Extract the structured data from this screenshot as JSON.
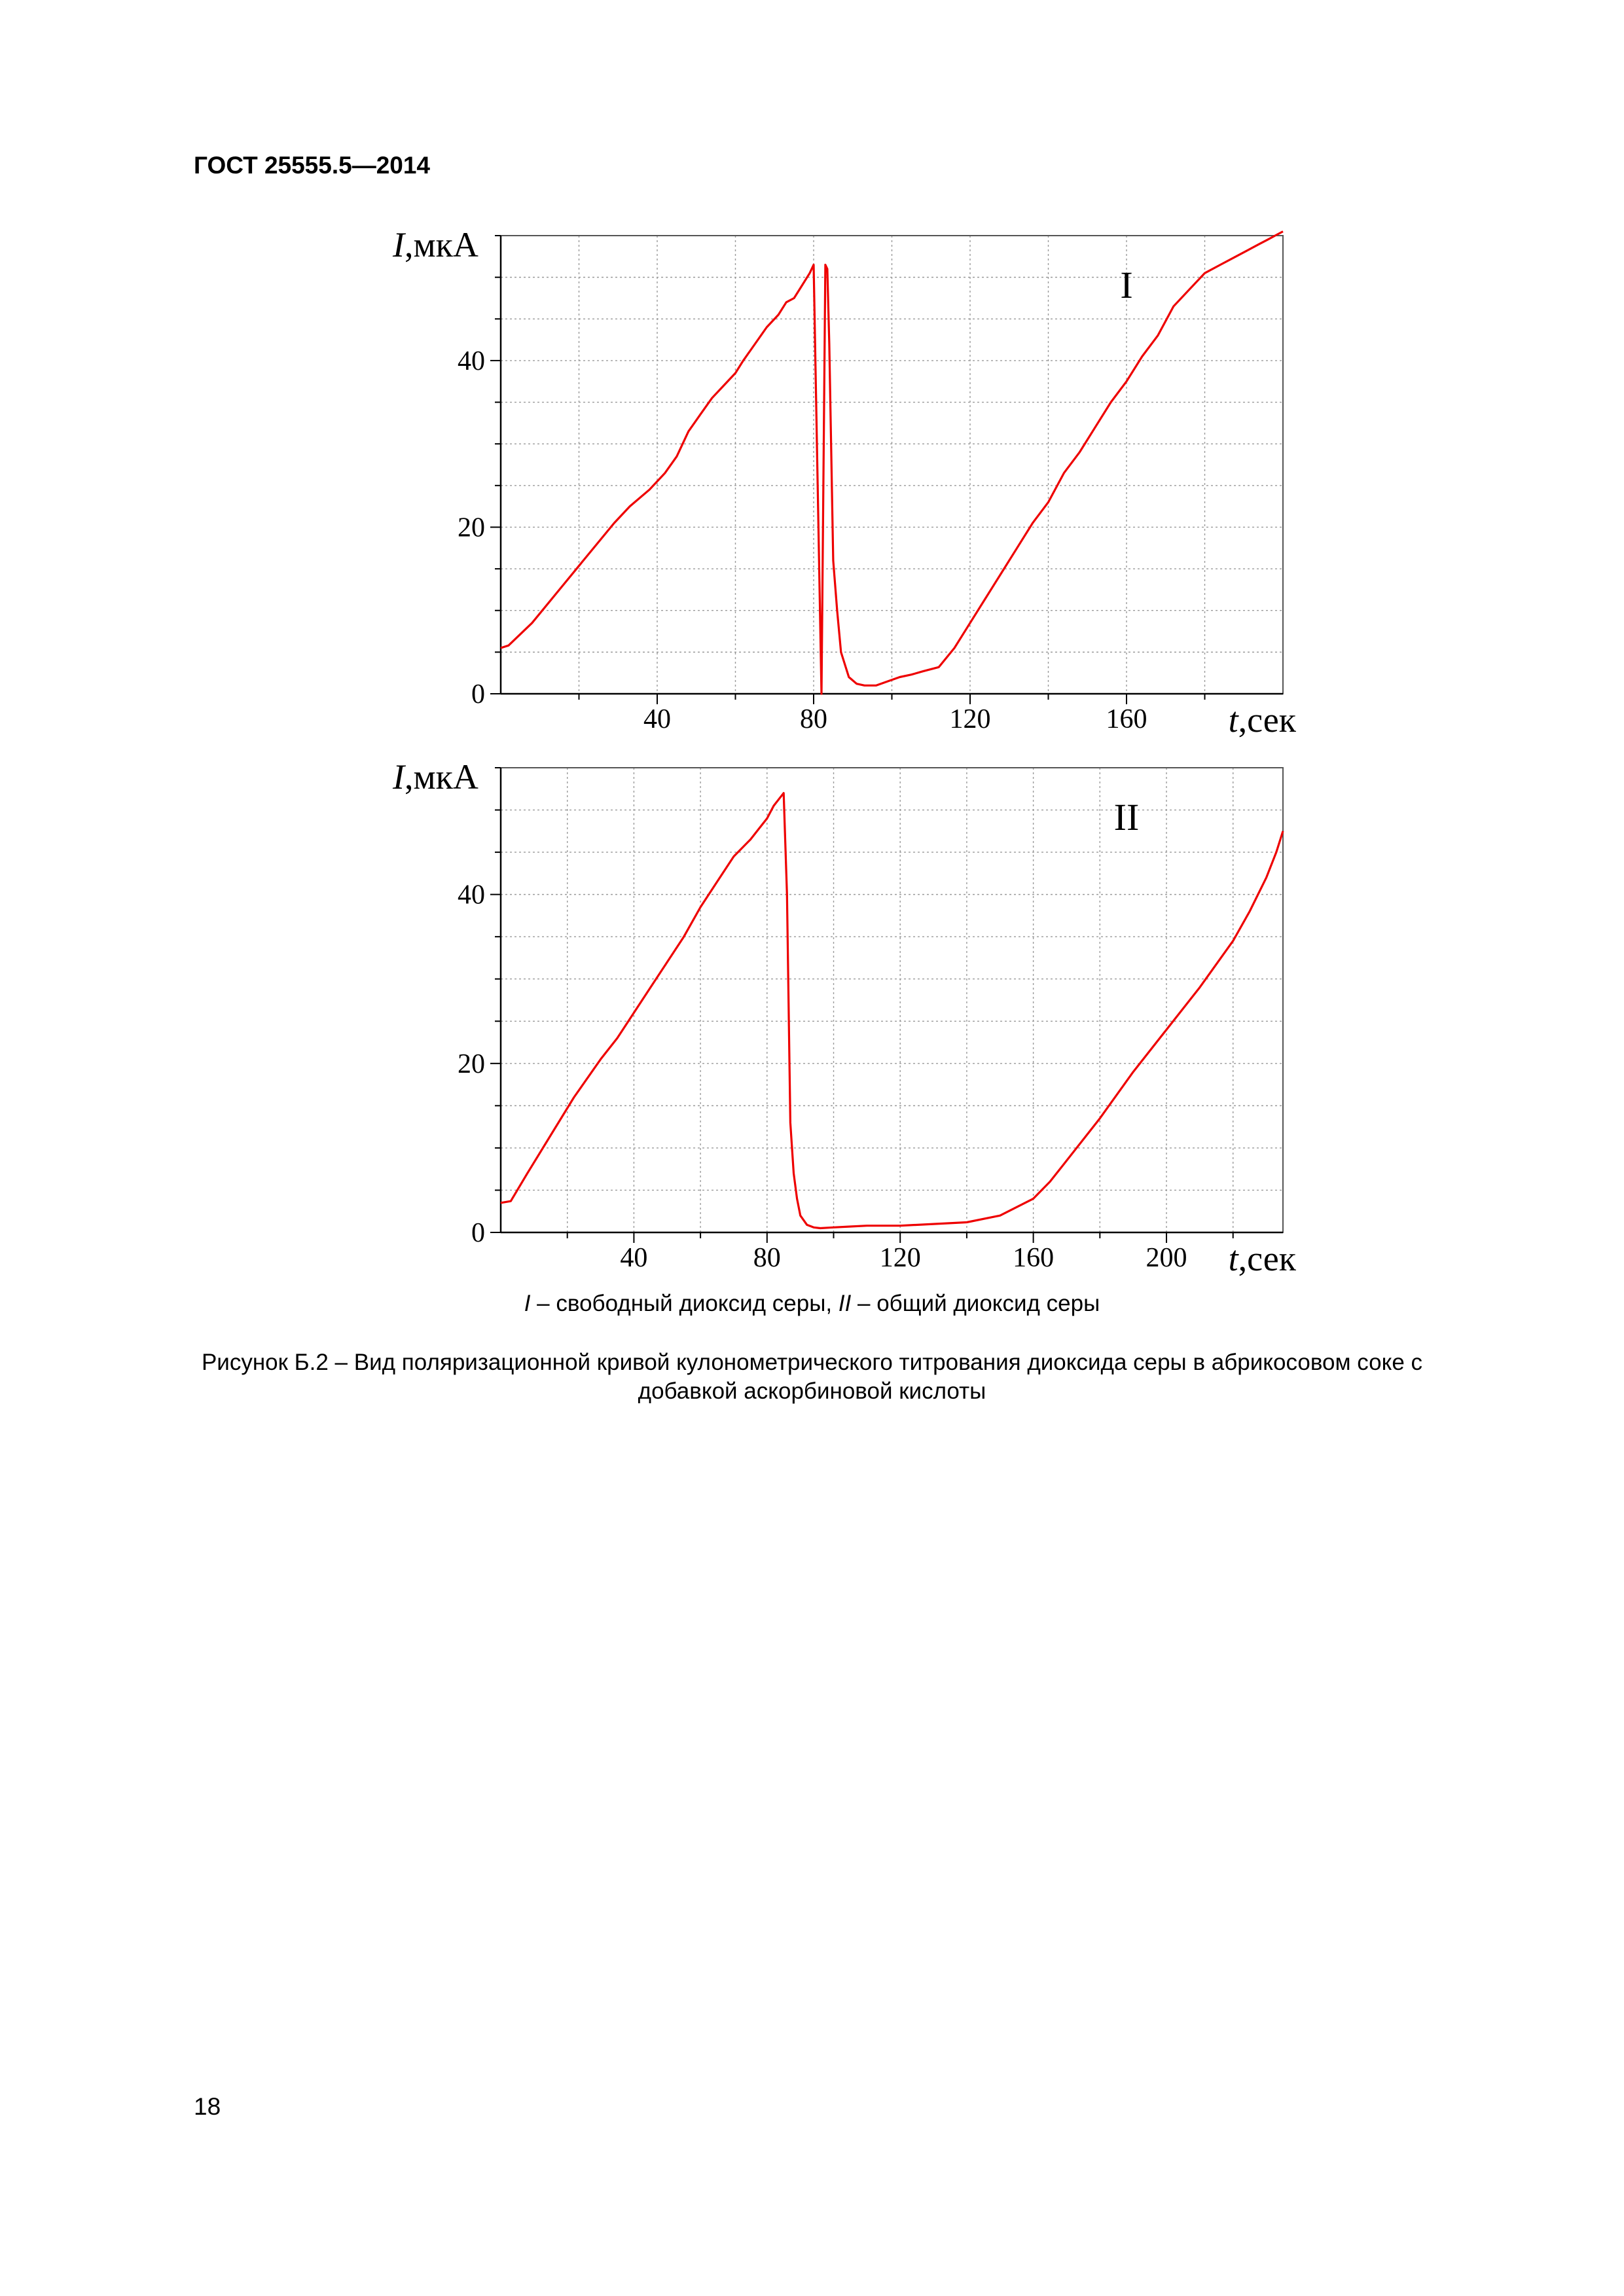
{
  "header": {
    "doc_code": "ГОСТ 25555.5—2014"
  },
  "chart_data": [
    {
      "type": "line",
      "panel_label": "I",
      "xlabel_italic": "t",
      "xlabel_unit": ",сек",
      "ylabel_italic": "I",
      "ylabel_unit": ",мкА",
      "xlim": [
        0,
        200
      ],
      "ylim": [
        0,
        55
      ],
      "x_ticks": [
        40,
        80,
        120,
        160
      ],
      "y_ticks": [
        0,
        20,
        40
      ],
      "y_tick_labels": [
        "0",
        "20",
        "40"
      ],
      "grid": true,
      "line_color": "#ee0000",
      "series": [
        {
          "x": [
            0,
            2,
            8,
            15,
            22,
            29,
            33,
            38,
            42,
            45,
            48,
            51,
            54,
            57,
            60,
            62,
            65,
            68,
            71,
            73,
            75,
            77,
            79,
            80,
            82,
            83,
            83.5,
            84,
            85,
            86,
            87,
            89,
            91,
            93,
            96,
            99,
            102,
            105,
            108,
            112,
            116,
            120,
            124,
            128,
            132,
            136,
            140,
            144,
            148,
            152,
            156,
            160,
            164,
            168,
            172,
            176,
            180,
            184,
            188,
            192,
            194,
            196,
            198,
            200
          ],
          "y": [
            5.5,
            5.8,
            8.5,
            12.5,
            16.5,
            20.5,
            22.5,
            24.5,
            26.5,
            28.5,
            31.5,
            33.5,
            35.5,
            37,
            38.5,
            40,
            42,
            44,
            45.5,
            47,
            47.5,
            49,
            50.5,
            51.5,
            0,
            51.5,
            51,
            42,
            16,
            10,
            5,
            2,
            1.2,
            1,
            1,
            1.5,
            2,
            2.3,
            2.7,
            3.2,
            5.5,
            8.5,
            11.5,
            14.5,
            17.5,
            20.5,
            23,
            26.5,
            29,
            32,
            35,
            37.5,
            40.5,
            43,
            46.5,
            48.5,
            50.5,
            51.5,
            52.5,
            53.5,
            54,
            54.5,
            55,
            55.5
          ]
        }
      ]
    },
    {
      "type": "line",
      "panel_label": "II",
      "xlabel_italic": "t",
      "xlabel_unit": ",сек",
      "ylabel_italic": "I",
      "ylabel_unit": ",мкА",
      "xlim": [
        0,
        235
      ],
      "ylim": [
        0,
        55
      ],
      "x_ticks": [
        40,
        80,
        120,
        160,
        200
      ],
      "y_ticks": [
        0,
        20,
        40
      ],
      "y_tick_labels": [
        "0",
        "20",
        "40"
      ],
      "grid": true,
      "line_color": "#ee0000",
      "series": [
        {
          "x": [
            0,
            3,
            8,
            15,
            22,
            30,
            35,
            40,
            45,
            50,
            55,
            60,
            65,
            70,
            75,
            78,
            80,
            82,
            84,
            85,
            86,
            87,
            88,
            89,
            90,
            92,
            94,
            96,
            100,
            105,
            110,
            120,
            130,
            140,
            150,
            160,
            165,
            170,
            175,
            180,
            190,
            200,
            210,
            220,
            225,
            230,
            233,
            235
          ],
          "y": [
            3.5,
            3.7,
            7,
            11.5,
            16,
            20.5,
            23,
            26,
            29,
            32,
            35,
            38.5,
            41.5,
            44.5,
            46.5,
            48,
            49,
            50.5,
            51.5,
            52,
            40,
            13,
            7,
            4,
            2,
            0.9,
            0.6,
            0.5,
            0.6,
            0.7,
            0.8,
            0.8,
            1.0,
            1.2,
            2.0,
            4.0,
            6.0,
            8.5,
            11.0,
            13.5,
            19.0,
            24.0,
            29.0,
            34.5,
            38.0,
            42.0,
            45.0,
            47.5
          ]
        }
      ]
    }
  ],
  "legend_line": {
    "part1": "I",
    "part2": " – свободный диоксид серы, ",
    "part3": "II",
    "part4": " – общий диоксид серы"
  },
  "figure_title": {
    "line1": "Рисунок Б.2 – Вид поляризационной кривой кулонометрического титрования диоксида серы в абрикосовом соке с",
    "line2": "добавкой аскорбиновой кислоты"
  },
  "page_number": "18"
}
